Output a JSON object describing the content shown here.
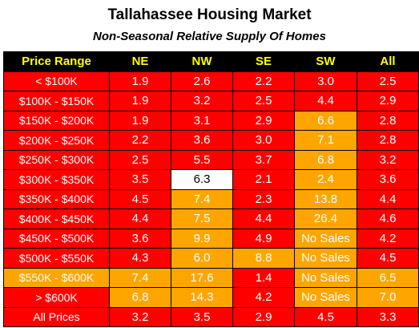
{
  "title": "Tallahassee Housing Market",
  "subtitle": "Non-Seasonal Relative Supply Of Homes",
  "colors": {
    "red": "#ff0000",
    "orange": "#ffa500",
    "white": "#ffffff",
    "header_bg": "#000000",
    "header_text": "#ffff00"
  },
  "chart_data": {
    "type": "table",
    "columns": [
      "Price Range",
      "NE",
      "NW",
      "SE",
      "SW",
      "All"
    ],
    "rows": [
      {
        "label": "< $100K",
        "row_color": "red",
        "cells": [
          {
            "value": "1.9",
            "color": "red"
          },
          {
            "value": "2.6",
            "color": "red"
          },
          {
            "value": "2.2",
            "color": "red"
          },
          {
            "value": "3.0",
            "color": "red"
          },
          {
            "value": "2.5",
            "color": "red"
          }
        ]
      },
      {
        "label": "$100K - $150K",
        "row_color": "red",
        "cells": [
          {
            "value": "1.9",
            "color": "red"
          },
          {
            "value": "3.2",
            "color": "red"
          },
          {
            "value": "2.5",
            "color": "red"
          },
          {
            "value": "4.4",
            "color": "red"
          },
          {
            "value": "2.9",
            "color": "red"
          }
        ]
      },
      {
        "label": "$150K - $200K",
        "row_color": "red",
        "cells": [
          {
            "value": "1.9",
            "color": "red"
          },
          {
            "value": "3.1",
            "color": "red"
          },
          {
            "value": "2.9",
            "color": "red"
          },
          {
            "value": "6.6",
            "color": "orange"
          },
          {
            "value": "2.8",
            "color": "red"
          }
        ]
      },
      {
        "label": "$200K - $250K",
        "row_color": "red",
        "cells": [
          {
            "value": "2.2",
            "color": "red"
          },
          {
            "value": "3.6",
            "color": "red"
          },
          {
            "value": "3.0",
            "color": "red"
          },
          {
            "value": "7.1",
            "color": "orange"
          },
          {
            "value": "2.8",
            "color": "red"
          }
        ]
      },
      {
        "label": "$250K - $300K",
        "row_color": "red",
        "cells": [
          {
            "value": "2.5",
            "color": "red"
          },
          {
            "value": "5.5",
            "color": "red"
          },
          {
            "value": "3.7",
            "color": "red"
          },
          {
            "value": "6.8",
            "color": "orange"
          },
          {
            "value": "3.2",
            "color": "red"
          }
        ]
      },
      {
        "label": "$300K - $350K",
        "row_color": "red",
        "cells": [
          {
            "value": "3.5",
            "color": "red"
          },
          {
            "value": "6.3",
            "color": "white"
          },
          {
            "value": "2.1",
            "color": "red"
          },
          {
            "value": "2.4",
            "color": "orange"
          },
          {
            "value": "3.6",
            "color": "red"
          }
        ]
      },
      {
        "label": "$350K - $400K",
        "row_color": "red",
        "cells": [
          {
            "value": "4.5",
            "color": "red"
          },
          {
            "value": "7.4",
            "color": "orange"
          },
          {
            "value": "2.3",
            "color": "red"
          },
          {
            "value": "13.8",
            "color": "orange"
          },
          {
            "value": "4.4",
            "color": "red"
          }
        ]
      },
      {
        "label": "$400K - $450K",
        "row_color": "red",
        "cells": [
          {
            "value": "4.4",
            "color": "red"
          },
          {
            "value": "7.5",
            "color": "orange"
          },
          {
            "value": "4.4",
            "color": "red"
          },
          {
            "value": "26.4",
            "color": "orange"
          },
          {
            "value": "4.6",
            "color": "red"
          }
        ]
      },
      {
        "label": "$450K - $500K",
        "row_color": "red",
        "cells": [
          {
            "value": "3.6",
            "color": "red"
          },
          {
            "value": "9.9",
            "color": "orange"
          },
          {
            "value": "4.9",
            "color": "red"
          },
          {
            "value": "No Sales",
            "color": "orange"
          },
          {
            "value": "4.2",
            "color": "red"
          }
        ]
      },
      {
        "label": "$500K - $550K",
        "row_color": "red",
        "cells": [
          {
            "value": "4.3",
            "color": "red"
          },
          {
            "value": "6.0",
            "color": "orange"
          },
          {
            "value": "8.8",
            "color": "orange"
          },
          {
            "value": "No Sales",
            "color": "orange"
          },
          {
            "value": "4.5",
            "color": "red"
          }
        ]
      },
      {
        "label": "$550K - $600K",
        "row_color": "orange",
        "cells": [
          {
            "value": "7.4",
            "color": "orange"
          },
          {
            "value": "17.6",
            "color": "orange"
          },
          {
            "value": "1.4",
            "color": "red"
          },
          {
            "value": "No Sales",
            "color": "orange"
          },
          {
            "value": "6.5",
            "color": "orange"
          }
        ]
      },
      {
        "label": "> $600K",
        "row_color": "red",
        "cells": [
          {
            "value": "6.8",
            "color": "orange"
          },
          {
            "value": "14.3",
            "color": "orange"
          },
          {
            "value": "4.2",
            "color": "red"
          },
          {
            "value": "No Sales",
            "color": "orange"
          },
          {
            "value": "7.0",
            "color": "orange"
          }
        ]
      },
      {
        "label": "All Prices",
        "row_color": "red",
        "cells": [
          {
            "value": "3.2",
            "color": "red"
          },
          {
            "value": "3.5",
            "color": "red"
          },
          {
            "value": "2.9",
            "color": "red"
          },
          {
            "value": "4.5",
            "color": "red"
          },
          {
            "value": "3.3",
            "color": "red"
          }
        ]
      }
    ]
  }
}
